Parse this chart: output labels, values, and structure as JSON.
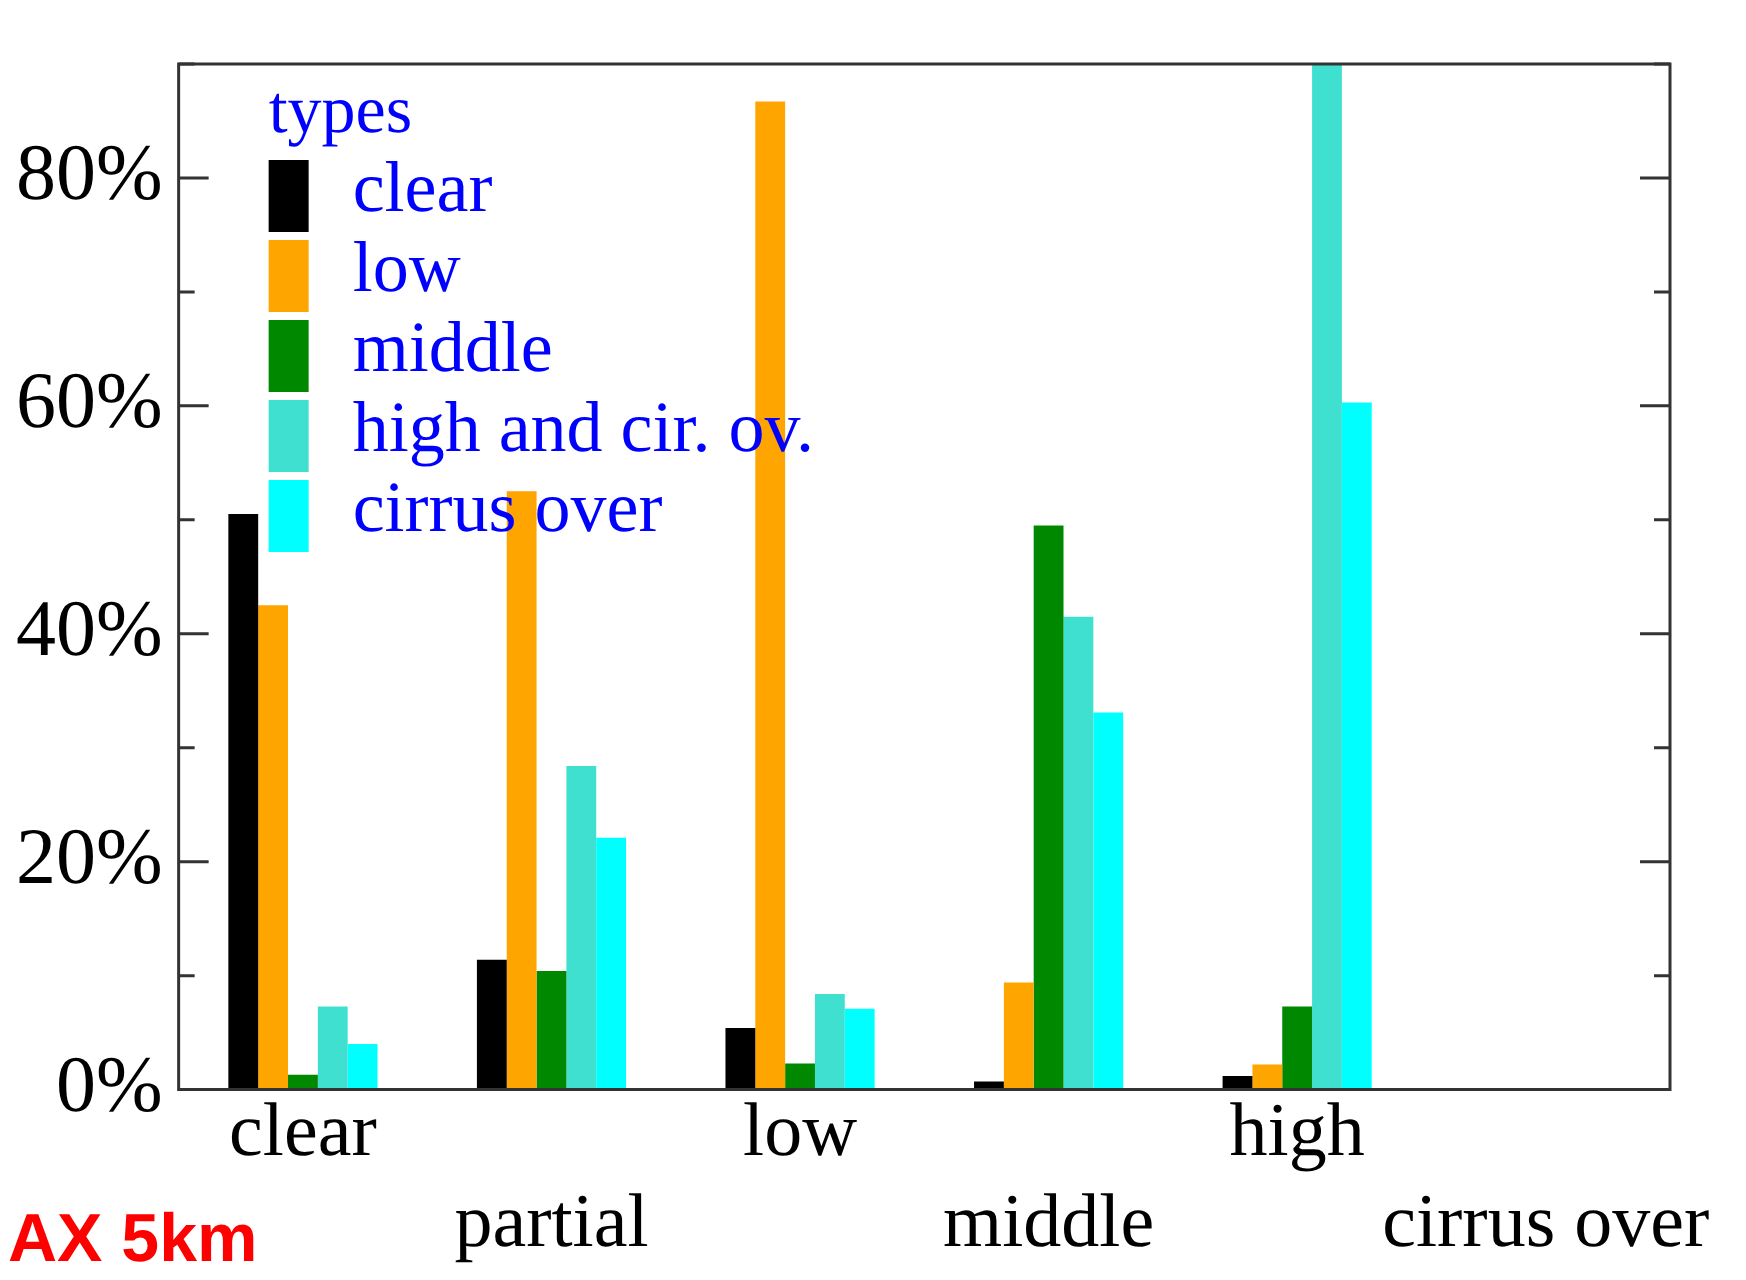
{
  "chart_data": {
    "type": "bar",
    "categories": [
      "clear",
      "partial",
      "low",
      "middle",
      "high",
      "cirrus over"
    ],
    "series": [
      {
        "name": "clear",
        "color": "#000000",
        "values": [
          50.5,
          11.4,
          5.4,
          0.7,
          1.2,
          null
        ]
      },
      {
        "name": "low",
        "color": "#ffa500",
        "values": [
          42.5,
          52.5,
          86.7,
          9.4,
          2.2,
          null
        ]
      },
      {
        "name": "middle",
        "color": "#008800",
        "values": [
          1.3,
          10.4,
          2.3,
          49.5,
          7.3,
          null
        ]
      },
      {
        "name": "high and cir. ov.",
        "color": "#40e0d0",
        "values": [
          7.3,
          28.4,
          8.4,
          41.5,
          90,
          null
        ]
      },
      {
        "name": "cirrus over",
        "color": "#00ffff",
        "values": [
          4,
          22.1,
          7.1,
          33.1,
          60.3,
          null
        ]
      }
    ],
    "legend_title": "types",
    "legend": "top left",
    "ylim": [
      0,
      90
    ],
    "yticks": [
      {
        "value": 0,
        "label": "0%"
      },
      {
        "value": 20,
        "label": "20%"
      },
      {
        "value": 40,
        "label": "40%"
      },
      {
        "value": 60,
        "label": "60%"
      },
      {
        "value": 80,
        "label": "80%"
      }
    ],
    "grid": false,
    "annotations": [
      "AX 5km"
    ]
  }
}
